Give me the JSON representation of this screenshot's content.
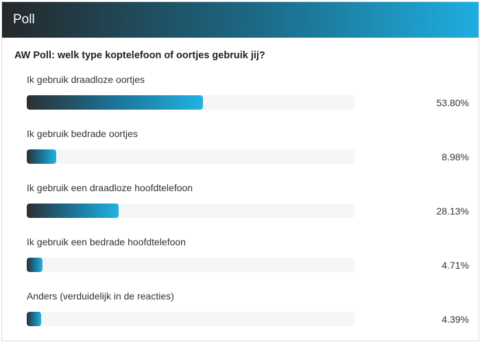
{
  "header": {
    "title": "Poll"
  },
  "question": "AW Poll: welk type koptelefoon of oortjes gebruik jij?",
  "options": [
    {
      "label": "Ik gebruik draadloze oortjes",
      "percent_text": "53.80%",
      "value": 53.8
    },
    {
      "label": "Ik gebruik bedrade oortjes",
      "percent_text": "8.98%",
      "value": 8.98
    },
    {
      "label": "Ik gebruik een draadloze hoofdtelefoon",
      "percent_text": "28.13%",
      "value": 28.13
    },
    {
      "label": "Ik gebruik een bedrade hoofdtelefoon",
      "percent_text": "4.71%",
      "value": 4.71
    },
    {
      "label": "Anders (verduidelijk in de reacties)",
      "percent_text": "4.39%",
      "value": 4.39
    }
  ],
  "colors": {
    "bar_gradient_start": "#2c2f33",
    "bar_gradient_end": "#22b2e4",
    "track": "#f4f6f8"
  }
}
